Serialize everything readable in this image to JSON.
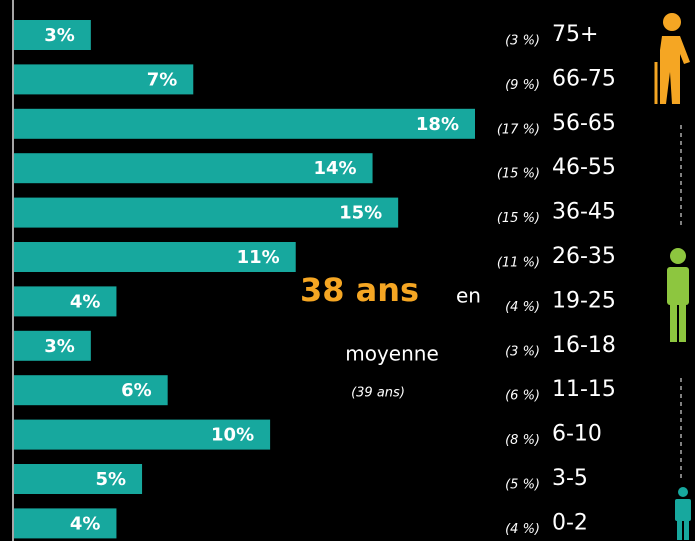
{
  "chart_data": {
    "type": "hbar",
    "categories": [
      "75+",
      "66-75",
      "56-65",
      "46-55",
      "36-45",
      "26-35",
      "19-25",
      "16-18",
      "11-15",
      "6-10",
      "3-5",
      "0-2"
    ],
    "values": [
      3,
      7,
      18,
      14,
      15,
      11,
      4,
      3,
      6,
      10,
      5,
      4
    ],
    "value_labels": [
      "3%",
      "7%",
      "18%",
      "14%",
      "15%",
      "11%",
      "4%",
      "3%",
      "6%",
      "10%",
      "5%",
      "4%"
    ],
    "comparison_labels": [
      "(3 %)",
      "(9 %)",
      "(17 %)",
      "(15 %)",
      "(15 %)",
      "(11 %)",
      "(4 %)",
      "(3 %)",
      "(6 %)",
      "(8 %)",
      "(5 %)",
      "(4 %)"
    ],
    "color": "#17a89e",
    "xlim": [
      0,
      18
    ],
    "annotations": [
      "38 ans",
      "en",
      "moyenne",
      "(39 ans)"
    ]
  }
}
